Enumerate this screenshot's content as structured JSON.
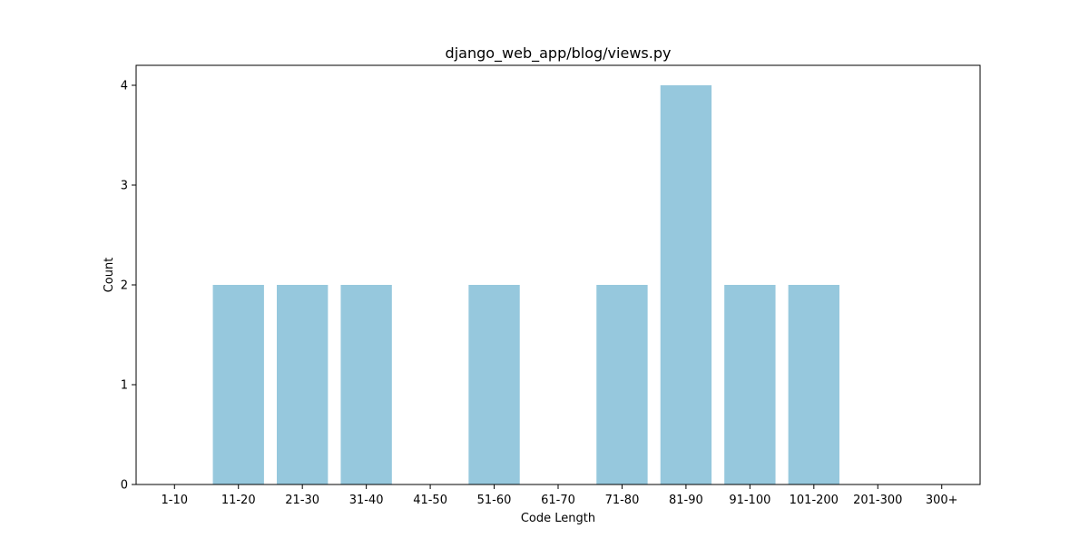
{
  "chart_data": {
    "type": "bar",
    "title": "django_web_app/blog/views.py",
    "xlabel": "Code Length",
    "ylabel": "Count",
    "categories": [
      "1-10",
      "11-20",
      "21-30",
      "31-40",
      "41-50",
      "51-60",
      "61-70",
      "71-80",
      "81-90",
      "91-100",
      "101-200",
      "201-300",
      "300+"
    ],
    "values": [
      0,
      2,
      2,
      2,
      0,
      2,
      0,
      2,
      4,
      2,
      2,
      0,
      0
    ],
    "ylim": [
      0,
      4.2
    ],
    "yticks": [
      0,
      1,
      2,
      3,
      4
    ],
    "grid": false,
    "bar_color": "#96c8dd"
  }
}
